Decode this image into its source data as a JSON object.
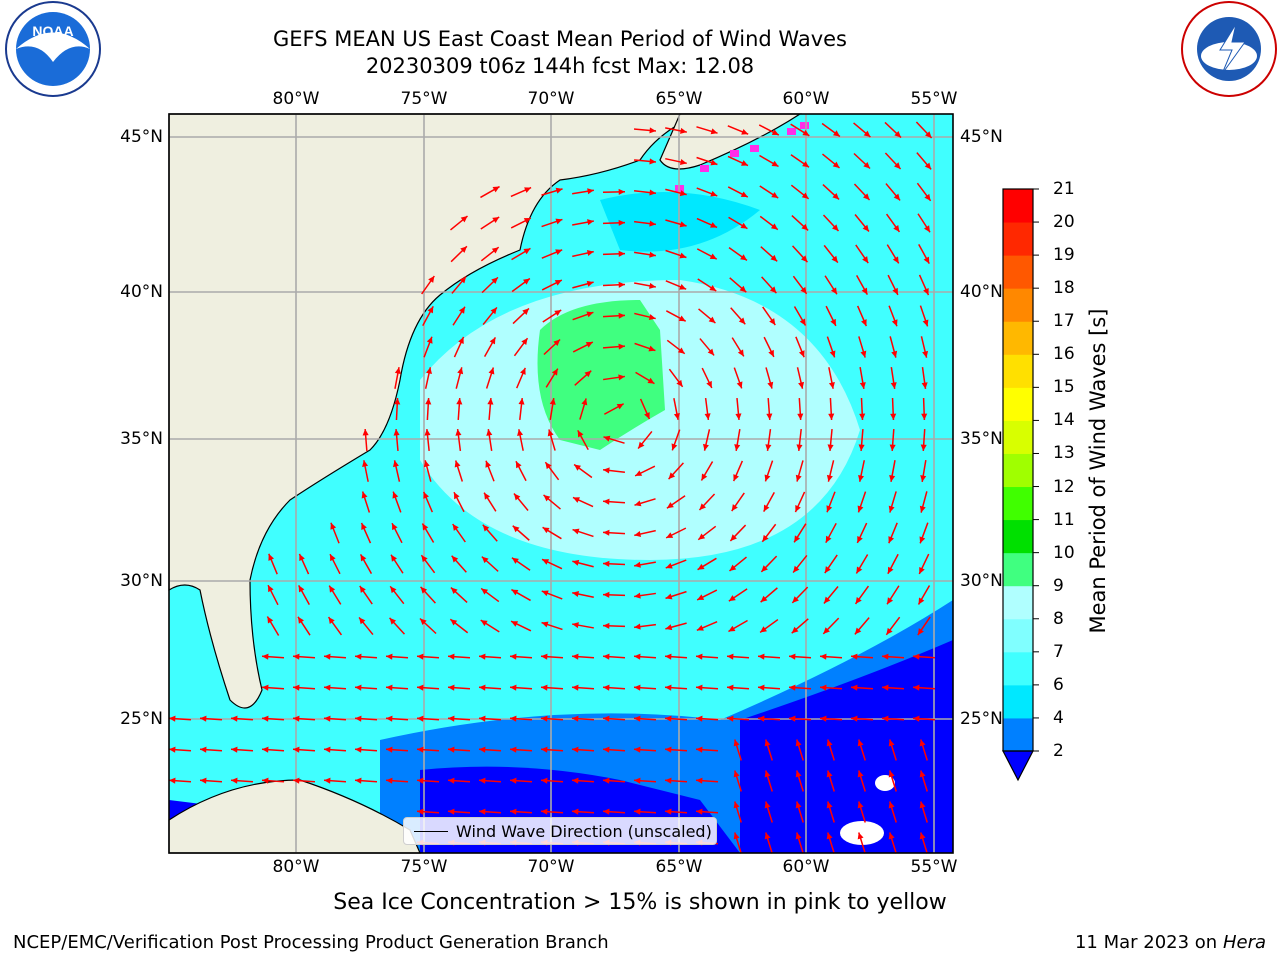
{
  "title_line1": "GEFS MEAN US East Coast Mean Period of Wind Waves",
  "title_line2": "20230309 t06z 144h fcst   Max: 12.08",
  "map": {
    "region": "US East Coast / Western North Atlantic",
    "lon_range": [
      -85,
      -54
    ],
    "lat_range": [
      20,
      46
    ],
    "lon_ticks": [
      "80°W",
      "75°W",
      "70°W",
      "65°W",
      "60°W",
      "55°W"
    ],
    "lat_ticks": [
      "45°N",
      "40°N",
      "35°N",
      "30°N",
      "25°N"
    ],
    "arrow_color": "#ff0000",
    "land_color": "#efefe0",
    "gridlines": true
  },
  "legend": {
    "label": "Wind Wave Direction (unscaled)"
  },
  "colorbar": {
    "label": "Mean Period of Wind Waves [s]",
    "ticks": [
      "2",
      "4",
      "6",
      "7",
      "8",
      "9",
      "10",
      "11",
      "12",
      "13",
      "14",
      "15",
      "16",
      "17",
      "18",
      "19",
      "20",
      "21"
    ],
    "colors": [
      "#0000ff",
      "#0080ff",
      "#00e8ff",
      "#40ffff",
      "#80ffff",
      "#b0ffff",
      "#40ff80",
      "#00e000",
      "#40ff00",
      "#a0ff00",
      "#d8ff00",
      "#ffff00",
      "#ffe000",
      "#ffb800",
      "#ff8800",
      "#ff5800",
      "#ff2800",
      "#ff0000"
    ],
    "extend": "min"
  },
  "caption": "Sea Ice Concentration > 15% is shown in pink to yellow",
  "footer_left": "NCEP/EMC/Verification Post Processing Product Generation Branch",
  "footer_right_date": "11 Mar 2023 on",
  "footer_right_host": "Hera",
  "logos": {
    "left": "NOAA",
    "right": "NATIONAL WEATHER SERVICE"
  }
}
